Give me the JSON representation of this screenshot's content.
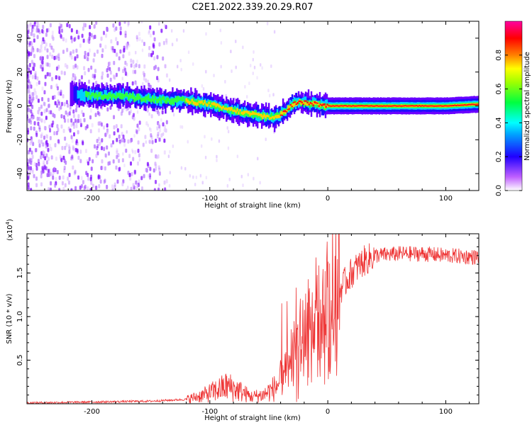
{
  "title": "C2E1.2022.339.20.29.R07",
  "chart_data": [
    {
      "type": "heatmap",
      "xlabel": "Height of straight line (km)",
      "ylabel": "Frequency (Hz)",
      "xlim": [
        -255,
        128
      ],
      "ylim": [
        -50,
        50
      ],
      "xticks": [
        -200,
        -100,
        0,
        100
      ],
      "yticks": [
        40,
        20,
        0,
        -20,
        -40
      ],
      "grid": false,
      "colorbar": {
        "label": "Normalized spectral amplitude",
        "range": [
          0,
          1
        ],
        "ticks": [
          "0.0",
          "0.2",
          "0.4",
          "0.6",
          "0.8"
        ],
        "colormap": [
          "#ffffff",
          "#9b00ff",
          "#0000ff",
          "#00ffff",
          "#00ff00",
          "#ffff00",
          "#ff8000",
          "#ff0000",
          "#ff00a0"
        ]
      },
      "ridge": {
        "x": [
          -215,
          -200,
          -175,
          -150,
          -120,
          -100,
          -85,
          -70,
          -55,
          -45,
          -35,
          -30,
          -25,
          -20,
          -10,
          0,
          20,
          60,
          100,
          128
        ],
        "y": [
          7,
          6,
          6,
          4,
          3,
          1,
          -2,
          -4,
          -6,
          -7,
          -3,
          1,
          2,
          2,
          1,
          0,
          0,
          0,
          0,
          1
        ]
      }
    },
    {
      "type": "line",
      "xlabel": "Height of straight line (km)",
      "ylabel": "SNR (10 * v/v)",
      "exponent_label": "(x10",
      "exponent_sup": "4",
      "exponent_close": ")",
      "xlim": [
        -255,
        128
      ],
      "ylim": [
        0,
        1.95
      ],
      "xticks": [
        -200,
        -100,
        0,
        100
      ],
      "yticks": [
        0.5,
        1.0,
        1.5
      ],
      "ytick_labels": [
        "0.5",
        "1.0",
        "1.5"
      ],
      "color": "#ee3333",
      "grid": false,
      "envelope": {
        "x": [
          -255,
          -200,
          -150,
          -120,
          -105,
          -95,
          -85,
          -75,
          -65,
          -55,
          -45,
          -35,
          -28,
          -22,
          -15,
          -10,
          -5,
          0,
          10,
          20,
          30,
          40,
          60,
          80,
          100,
          128
        ],
        "y": [
          0.01,
          0.02,
          0.03,
          0.05,
          0.1,
          0.15,
          0.2,
          0.15,
          0.08,
          0.1,
          0.18,
          0.35,
          0.55,
          0.75,
          0.85,
          0.9,
          0.95,
          1.1,
          1.3,
          1.5,
          1.63,
          1.7,
          1.72,
          1.72,
          1.7,
          1.68
        ]
      }
    }
  ]
}
